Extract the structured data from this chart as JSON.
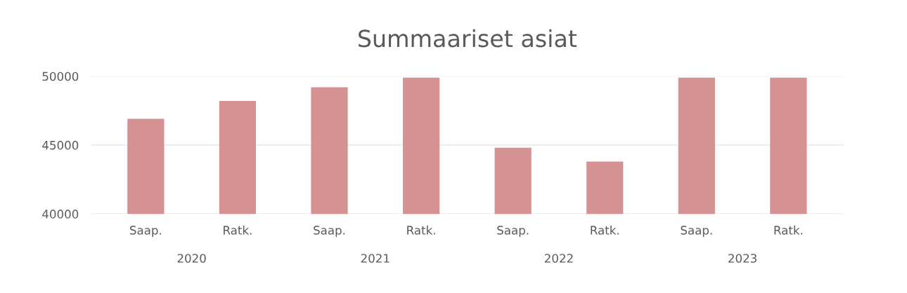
{
  "chart_data": {
    "type": "bar",
    "title": "Summaariset asiat",
    "categories": [
      "Saap.",
      "Ratk.",
      "Saap.",
      "Ratk.",
      "Saap.",
      "Ratk.",
      "Saap.",
      "Ratk."
    ],
    "values": [
      46900,
      48200,
      49200,
      49900,
      44800,
      43800,
      49900,
      49900
    ],
    "color": "#d49392",
    "ylim": [
      40000,
      50000
    ],
    "yticks": [
      40000,
      45000,
      50000
    ],
    "grid": "y",
    "annotations": [
      "2020",
      "2021",
      "2022",
      "2023"
    ]
  }
}
